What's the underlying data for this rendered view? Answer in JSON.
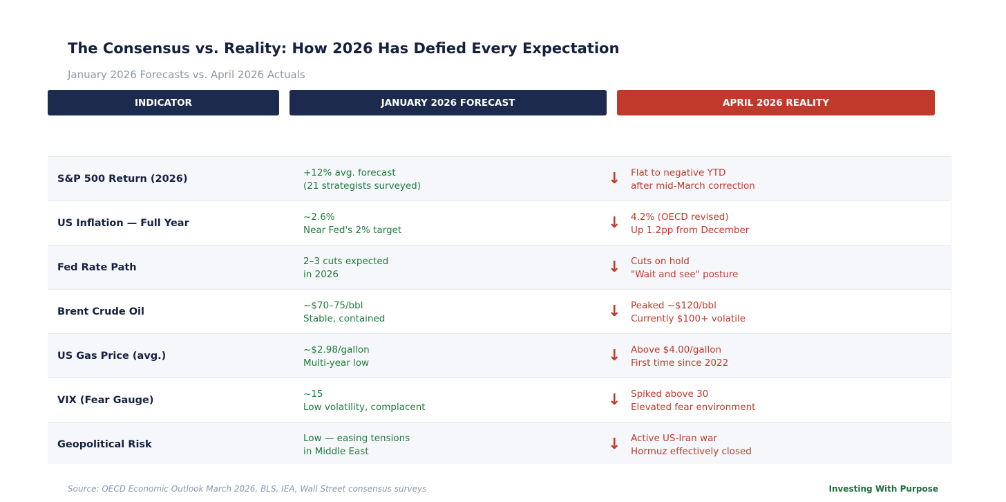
{
  "title": "The Consensus vs. Reality: How 2026 Has Defied Every Expectation",
  "subtitle": "January 2026 Forecasts vs. April 2026 Actuals",
  "colors": {
    "navy": "#1c2b4d",
    "red": "#c0392b",
    "green": "#1e7a3c"
  },
  "chart_data": {
    "type": "table",
    "columns": [
      "INDICATOR",
      "JANUARY 2026 FORECAST",
      "APRIL 2026 REALITY"
    ],
    "rows": [
      {
        "indicator": "S&P 500 Return (2026)",
        "forecast": [
          "+12% avg. forecast",
          "(21 strategists surveyed)"
        ],
        "reality": [
          "Flat to negative YTD",
          "after mid-March correction"
        ],
        "icon": "arrow-down-icon"
      },
      {
        "indicator": "US Inflation — Full Year",
        "forecast": [
          "~2.6%",
          "Near Fed's 2% target"
        ],
        "reality": [
          "4.2% (OECD revised)",
          "Up 1.2pp from December"
        ],
        "icon": "arrow-down-icon"
      },
      {
        "indicator": "Fed Rate Path",
        "forecast": [
          "2–3 cuts expected",
          "in 2026"
        ],
        "reality": [
          "Cuts on hold",
          "\"Wait and see\" posture"
        ],
        "icon": "arrow-down-icon"
      },
      {
        "indicator": "Brent Crude Oil",
        "forecast": [
          "~$70–75/bbl",
          "Stable, contained"
        ],
        "reality": [
          "Peaked ~$120/bbl",
          "Currently $100+ volatile"
        ],
        "icon": "arrow-down-icon"
      },
      {
        "indicator": "US Gas Price (avg.)",
        "forecast": [
          "~$2.98/gallon",
          "Multi-year low"
        ],
        "reality": [
          "Above $4.00/gallon",
          "First time since 2022"
        ],
        "icon": "arrow-down-icon"
      },
      {
        "indicator": "VIX (Fear Gauge)",
        "forecast": [
          "~15",
          "Low volatility, complacent"
        ],
        "reality": [
          "Spiked above 30",
          "Elevated fear environment"
        ],
        "icon": "arrow-down-icon"
      },
      {
        "indicator": "Geopolitical Risk",
        "forecast": [
          "Low — easing tensions",
          "in Middle East"
        ],
        "reality": [
          "Active US-Iran war",
          "Hormuz effectively closed"
        ],
        "icon": "arrow-down-icon"
      }
    ]
  },
  "arrow_glyph": "↓",
  "footer": {
    "source": "Source: OECD Economic Outlook March 2026, BLS, IEA, Wall Street consensus surveys",
    "brand": "Investing With Purpose"
  }
}
